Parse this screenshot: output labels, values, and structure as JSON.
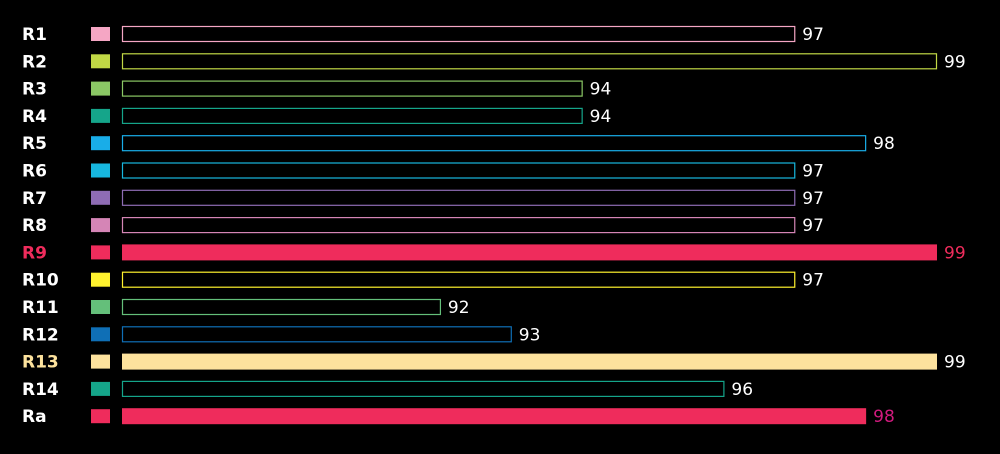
{
  "chart_data": {
    "type": "bar",
    "orientation": "horizontal",
    "categories": [
      "R1",
      "R2",
      "R3",
      "R4",
      "R5",
      "R6",
      "R7",
      "R8",
      "R9",
      "R10",
      "R11",
      "R12",
      "R13",
      "R14",
      "Ra"
    ],
    "values": [
      97,
      99,
      94,
      94,
      98,
      97,
      97,
      97,
      99,
      97,
      92,
      93,
      99,
      96,
      98
    ],
    "colors": [
      "#f5a6c4",
      "#c1d845",
      "#8bc865",
      "#15a58a",
      "#19ade8",
      "#17b7df",
      "#8e6cb4",
      "#d585b6",
      "#ef2c5c",
      "#fff22e",
      "#64bf7a",
      "#0f6fb6",
      "#fde29d",
      "#15a58a",
      "#ef2c5c"
    ],
    "filled": [
      false,
      false,
      false,
      false,
      false,
      false,
      false,
      false,
      true,
      false,
      false,
      false,
      true,
      false,
      true
    ],
    "label_colors": [
      "#ffffff",
      "#ffffff",
      "#ffffff",
      "#ffffff",
      "#ffffff",
      "#ffffff",
      "#ffffff",
      "#ffffff",
      "#ef2c5c",
      "#ffffff",
      "#ffffff",
      "#ffffff",
      "#fde29d",
      "#ffffff",
      "#ffffff"
    ],
    "value_label_colors": [
      "#ffffff",
      "#ffffff",
      "#ffffff",
      "#ffffff",
      "#ffffff",
      "#ffffff",
      "#ffffff",
      "#ffffff",
      "#ef2c5c",
      "#ffffff",
      "#ffffff",
      "#ffffff",
      "#ffffff",
      "#ffffff",
      "#d11a7e"
    ],
    "xlim": [
      87.5,
      99
    ],
    "background": "#000000",
    "legend": "none",
    "grid": false,
    "title": "",
    "xlabel": "",
    "ylabel": ""
  }
}
